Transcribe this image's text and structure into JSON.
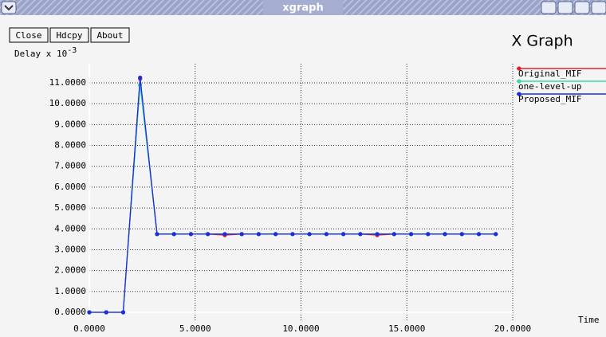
{
  "window": {
    "title": "xgraph",
    "buttons": [
      "Close",
      "Hdcpy",
      "About"
    ]
  },
  "chart_data": {
    "type": "line",
    "title": "X Graph",
    "y_label": {
      "base": "Delay x 10",
      "exponent": "-3"
    },
    "x_label": "Time",
    "x": [
      0,
      0.8,
      1.6,
      2.4,
      3.2,
      4.0,
      4.8,
      5.6,
      6.4,
      7.2,
      8.0,
      8.8,
      9.6,
      10.4,
      11.2,
      12.0,
      12.8,
      13.6,
      14.4,
      15.2,
      16.0,
      16.8,
      17.6,
      18.4,
      19.2
    ],
    "series": [
      {
        "name": "Original_MIF",
        "color": "#e0202a",
        "values": [
          0,
          0,
          0,
          11.2,
          3.75,
          3.75,
          3.75,
          3.75,
          3.7,
          3.75,
          3.75,
          3.75,
          3.75,
          3.75,
          3.75,
          3.75,
          3.75,
          3.7,
          3.75,
          3.75,
          3.75,
          3.75,
          3.75,
          3.75,
          3.75
        ]
      },
      {
        "name": "one-level-up",
        "color": "#3cd8a0",
        "values": [
          0,
          0,
          0,
          10.9,
          3.75,
          3.75,
          3.75,
          3.75,
          3.75,
          3.75,
          3.75,
          3.75,
          3.75,
          3.75,
          3.75,
          3.75,
          3.75,
          3.75,
          3.75,
          3.75,
          3.75,
          3.75,
          3.75,
          3.75,
          3.75
        ]
      },
      {
        "name": "Proposed_MIF",
        "color": "#1a2ee0",
        "values": [
          0,
          0,
          0,
          11.25,
          3.75,
          3.75,
          3.75,
          3.75,
          3.75,
          3.75,
          3.75,
          3.75,
          3.75,
          3.75,
          3.75,
          3.75,
          3.75,
          3.75,
          3.75,
          3.75,
          3.75,
          3.75,
          3.75,
          3.75,
          3.75
        ]
      }
    ],
    "xlim": [
      0,
      20
    ],
    "ylim": [
      0,
      11
    ],
    "xticks": [
      {
        "value": 0,
        "label": "0.0000"
      },
      {
        "value": 5,
        "label": "5.0000"
      },
      {
        "value": 10,
        "label": "10.0000"
      },
      {
        "value": 15,
        "label": "15.0000"
      },
      {
        "value": 20,
        "label": "20.0000"
      }
    ],
    "yticks": [
      {
        "value": 0,
        "label": "0.0000"
      },
      {
        "value": 1,
        "label": "1.0000"
      },
      {
        "value": 2,
        "label": "2.0000"
      },
      {
        "value": 3,
        "label": "3.0000"
      },
      {
        "value": 4,
        "label": "4.0000"
      },
      {
        "value": 5,
        "label": "5.0000"
      },
      {
        "value": 6,
        "label": "6.0000"
      },
      {
        "value": 7,
        "label": "7.0000"
      },
      {
        "value": 8,
        "label": "8.0000"
      },
      {
        "value": 9,
        "label": "9.0000"
      },
      {
        "value": 10,
        "label": "10.0000"
      },
      {
        "value": 11,
        "label": "11.0000"
      }
    ],
    "grid": true,
    "legend": "right"
  }
}
